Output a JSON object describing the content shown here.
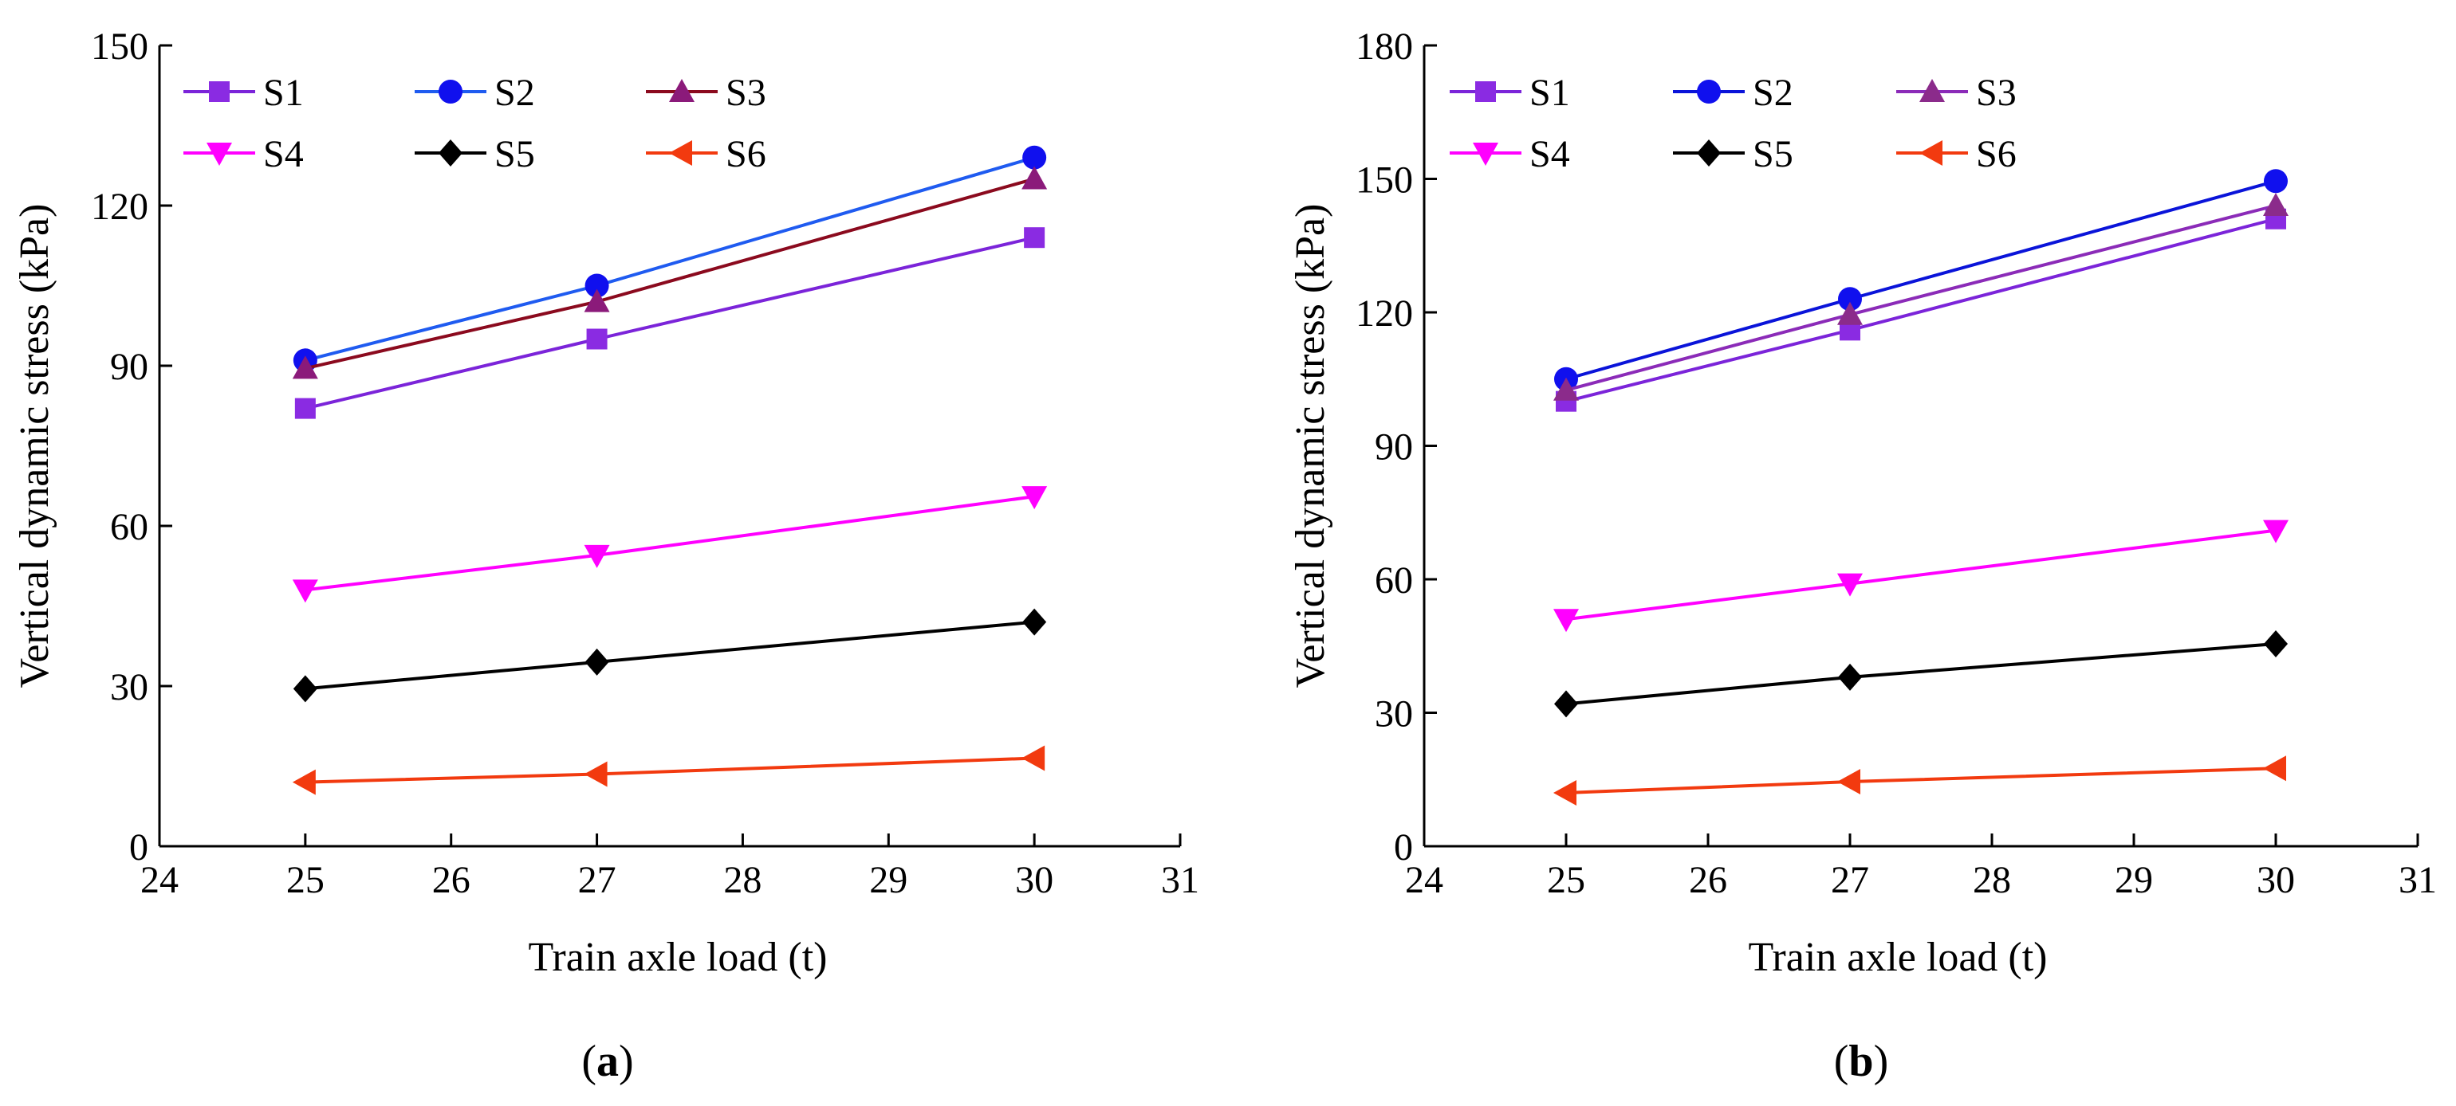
{
  "chart_data": [
    {
      "type": "line",
      "panel": "a",
      "panel_label": {
        "open": "(",
        "letter": "a",
        "close": ")"
      },
      "xlabel": "Train axle load (t)",
      "ylabel": "Vertical dynamic stress (kPa)",
      "xlim": [
        24,
        31
      ],
      "ylim": [
        0,
        150
      ],
      "xticks": [
        "24",
        "25",
        "26",
        "27",
        "28",
        "29",
        "30",
        "31"
      ],
      "yticks": [
        "0",
        "30",
        "60",
        "90",
        "120",
        "150"
      ],
      "legend_placement": "top-left",
      "x": [
        25,
        27,
        30
      ],
      "series": [
        {
          "name": "S1",
          "values": [
            82,
            95,
            114
          ],
          "color": "#7B24D9",
          "marker": "square"
        },
        {
          "name": "S2",
          "values": [
            91,
            105,
            129
          ],
          "color": "#1F5BF0",
          "marker": "circle"
        },
        {
          "name": "S3",
          "values": [
            89.5,
            102,
            125
          ],
          "color": "#8B0A1E",
          "marker": "triangle-up"
        },
        {
          "name": "S4",
          "values": [
            48,
            54.5,
            65.5
          ],
          "color": "#FF00FF",
          "marker": "triangle-down"
        },
        {
          "name": "S5",
          "values": [
            29.5,
            34.5,
            42
          ],
          "color": "#000000",
          "marker": "diamond"
        },
        {
          "name": "S6",
          "values": [
            12,
            13.5,
            16.5
          ],
          "color": "#F23A0F",
          "marker": "triangle-left"
        }
      ],
      "marker_colors": {
        "S1": "#8A2BE2",
        "S2": "#1010EE",
        "S3": "#8B1A7A",
        "S4": "#FF00FF",
        "S5": "#000000",
        "S6": "#F23A0F"
      }
    },
    {
      "type": "line",
      "panel": "b",
      "panel_label": {
        "open": "(",
        "letter": "b",
        "close": ")"
      },
      "xlabel": "Train axle load (t)",
      "ylabel": "Vertical dynamic stress (kPa)",
      "xlim": [
        24,
        31
      ],
      "ylim": [
        0,
        180
      ],
      "xticks": [
        "24",
        "25",
        "26",
        "27",
        "28",
        "29",
        "30",
        "31"
      ],
      "yticks": [
        "0",
        "30",
        "60",
        "90",
        "120",
        "150",
        "180"
      ],
      "legend_placement": "top-left",
      "x": [
        25,
        27,
        30
      ],
      "series": [
        {
          "name": "S1",
          "values": [
            100,
            116,
            141
          ],
          "color": "#7B24D9",
          "marker": "square"
        },
        {
          "name": "S2",
          "values": [
            105,
            123,
            149.5
          ],
          "color": "#0A14D9",
          "marker": "circle"
        },
        {
          "name": "S3",
          "values": [
            102.5,
            119.5,
            144
          ],
          "color": "#8B2BB8",
          "marker": "triangle-up"
        },
        {
          "name": "S4",
          "values": [
            51,
            59,
            71
          ],
          "color": "#FF00FF",
          "marker": "triangle-down"
        },
        {
          "name": "S5",
          "values": [
            32,
            38,
            45.5
          ],
          "color": "#000000",
          "marker": "diamond"
        },
        {
          "name": "S6",
          "values": [
            12,
            14.5,
            17.5
          ],
          "color": "#F23A0F",
          "marker": "triangle-left"
        }
      ],
      "marker_colors": {
        "S1": "#8A2BE2",
        "S2": "#1010EE",
        "S3": "#8B2B8B",
        "S4": "#FF00FF",
        "S5": "#000000",
        "S6": "#F23A0F"
      }
    }
  ]
}
